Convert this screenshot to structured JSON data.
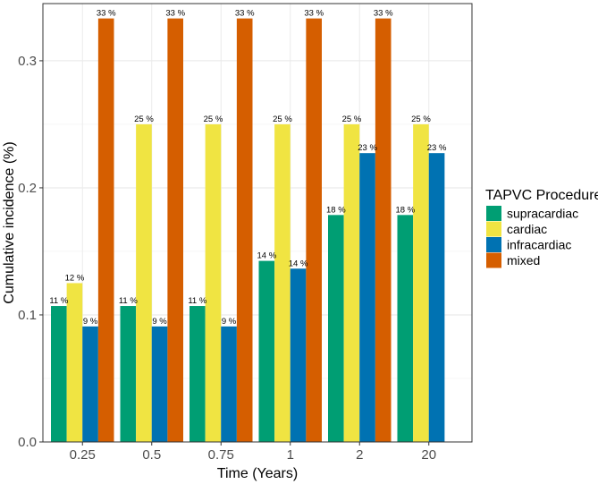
{
  "chart_data": {
    "type": "bar",
    "title": "",
    "xlabel": "Time (Years)",
    "ylabel": "Cumulative incidence (%)",
    "categories": [
      "0.25",
      "0.5",
      "0.75",
      "1",
      "2",
      "20"
    ],
    "ylim": [
      0,
      0.345
    ],
    "y_ticks": [
      0.0,
      0.1,
      0.2,
      0.3
    ],
    "y_tick_labels": [
      "0.0",
      "0.1",
      "0.2",
      "0.3"
    ],
    "grid": true,
    "legend": {
      "title": "TAPVC Procedure",
      "position": "right"
    },
    "series": [
      {
        "name": "supracardiac",
        "color": "#009E73",
        "values": [
          0.107,
          0.107,
          0.107,
          0.1425,
          0.1786,
          0.1786
        ],
        "labels": [
          "11 %",
          "11 %",
          "11 %",
          "14 %",
          "18 %",
          "18 %"
        ]
      },
      {
        "name": "cardiac",
        "color": "#F0E442",
        "values": [
          0.125,
          0.25,
          0.25,
          0.25,
          0.25,
          0.25
        ],
        "labels": [
          "12 %",
          "25 %",
          "25 %",
          "25 %",
          "25 %",
          "25 %"
        ]
      },
      {
        "name": "infracardiac",
        "color": "#0072B2",
        "values": [
          0.0909,
          0.0909,
          0.0909,
          0.1364,
          0.2273,
          0.2273
        ],
        "labels": [
          "9 %",
          "9 %",
          "9 %",
          "14 %",
          "23 %",
          "23 %"
        ]
      },
      {
        "name": "mixed",
        "color": "#D55E00",
        "values": [
          0.3333,
          0.3333,
          0.3333,
          0.3333,
          0.3333,
          null
        ],
        "labels": [
          "33 %",
          "33 %",
          "33 %",
          "33 %",
          "33 %",
          null
        ]
      }
    ]
  }
}
